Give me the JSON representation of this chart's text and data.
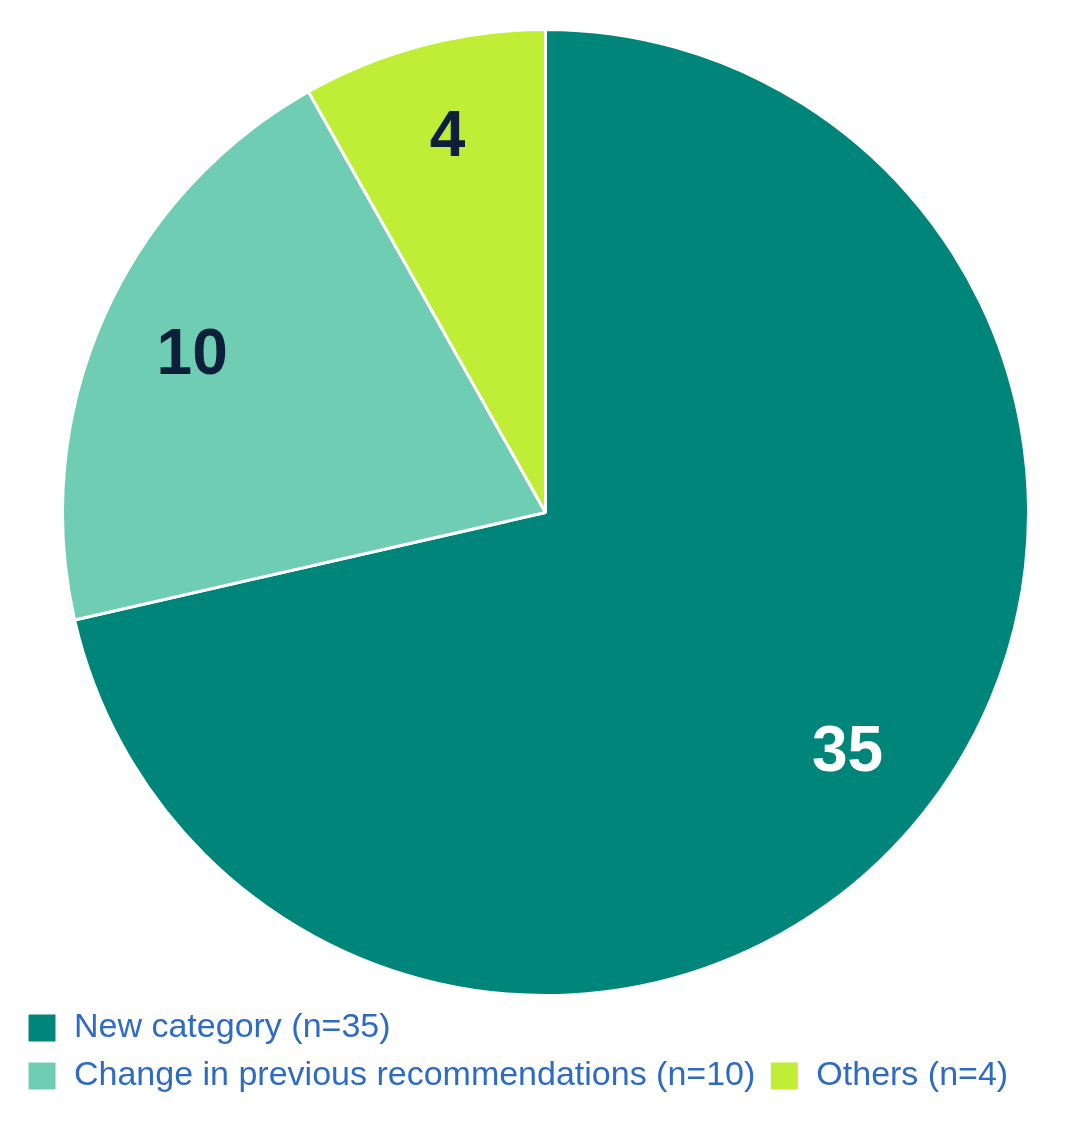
{
  "chart_data": {
    "type": "pie",
    "categories": [
      "New category (n=35)",
      "Change in previous recommendations (n=10)",
      "Others (n=4)"
    ],
    "values": [
      35,
      10,
      4
    ],
    "colors": [
      "#00857a",
      "#6fcdb3",
      "#c0ed35"
    ],
    "data_labels": true,
    "legend": "bottom"
  }
}
